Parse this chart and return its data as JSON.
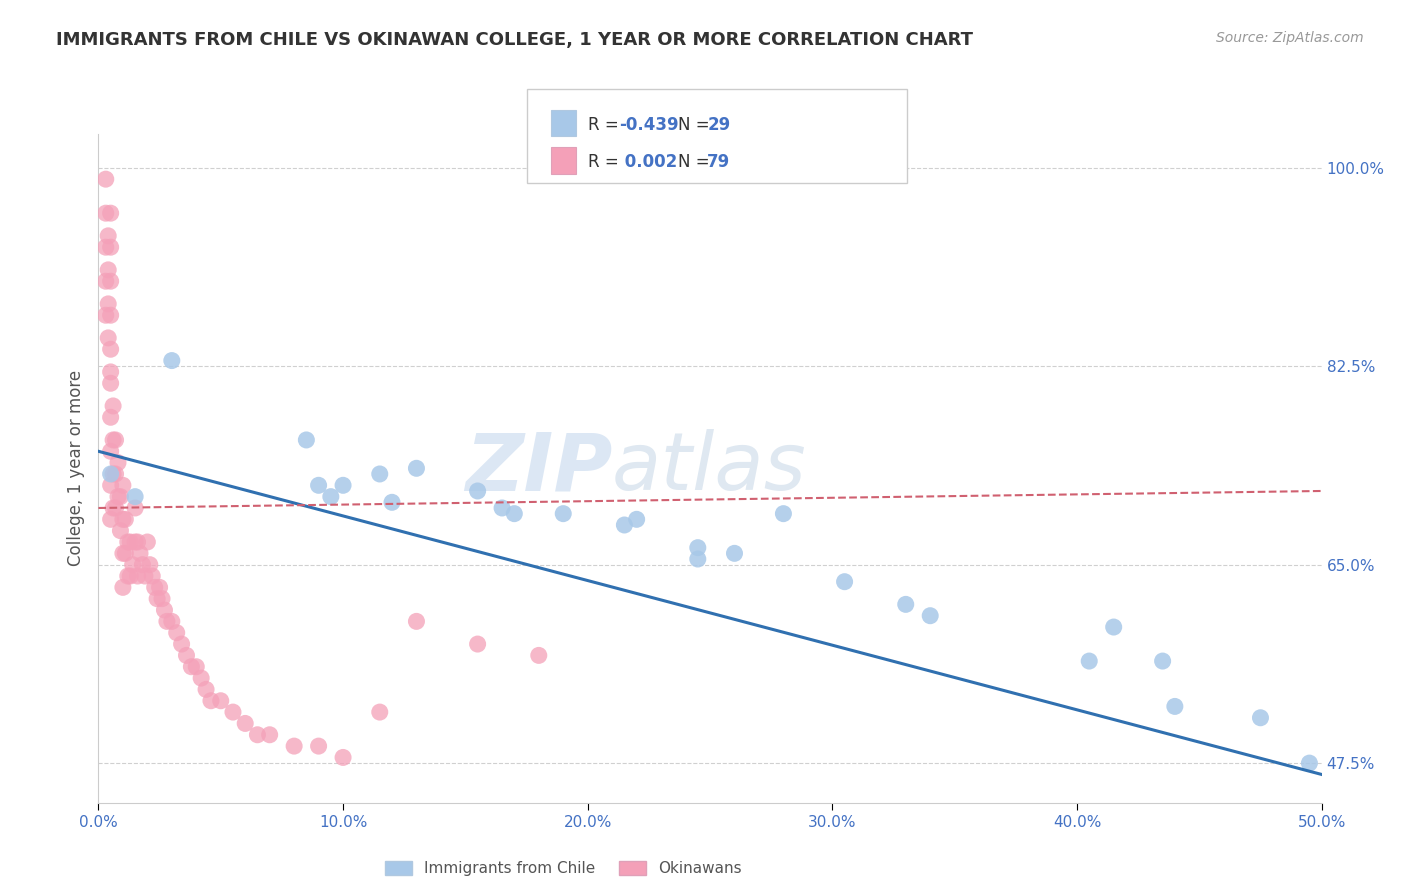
{
  "title": "IMMIGRANTS FROM CHILE VS OKINAWAN COLLEGE, 1 YEAR OR MORE CORRELATION CHART",
  "source": "Source: ZipAtlas.com",
  "ylabel": "College, 1 year or more",
  "xlim": [
    0.0,
    0.5
  ],
  "ylim": [
    0.44,
    1.03
  ],
  "xticks": [
    0.0,
    0.1,
    0.2,
    0.3,
    0.4,
    0.5
  ],
  "xticklabels": [
    "0.0%",
    "10.0%",
    "20.0%",
    "30.0%",
    "40.0%",
    "50.0%"
  ],
  "yticks_right": [
    0.475,
    0.65,
    0.825,
    1.0
  ],
  "yticklabels_right": [
    "47.5%",
    "65.0%",
    "82.5%",
    "100.0%"
  ],
  "legend_label1": "Immigrants from Chile",
  "legend_label2": "Okinawans",
  "blue_color": "#a8c8e8",
  "pink_color": "#f4a0b8",
  "blue_line_color": "#3070b0",
  "pink_line_color": "#d06070",
  "watermark_zip": "ZIP",
  "watermark_atlas": "atlas",
  "blue_scatter_x": [
    0.005,
    0.015,
    0.03,
    0.085,
    0.09,
    0.095,
    0.1,
    0.115,
    0.12,
    0.13,
    0.155,
    0.165,
    0.17,
    0.19,
    0.215,
    0.22,
    0.245,
    0.245,
    0.26,
    0.28,
    0.305,
    0.33,
    0.34,
    0.405,
    0.415,
    0.435,
    0.44,
    0.475,
    0.495
  ],
  "blue_scatter_y": [
    0.73,
    0.71,
    0.83,
    0.76,
    0.72,
    0.71,
    0.72,
    0.73,
    0.705,
    0.735,
    0.715,
    0.7,
    0.695,
    0.695,
    0.685,
    0.69,
    0.665,
    0.655,
    0.66,
    0.695,
    0.635,
    0.615,
    0.605,
    0.565,
    0.595,
    0.565,
    0.525,
    0.515,
    0.475
  ],
  "pink_scatter_x": [
    0.003,
    0.003,
    0.003,
    0.003,
    0.003,
    0.004,
    0.004,
    0.004,
    0.004,
    0.005,
    0.005,
    0.005,
    0.005,
    0.005,
    0.005,
    0.005,
    0.005,
    0.005,
    0.005,
    0.005,
    0.006,
    0.006,
    0.006,
    0.006,
    0.007,
    0.007,
    0.007,
    0.008,
    0.008,
    0.009,
    0.009,
    0.01,
    0.01,
    0.01,
    0.01,
    0.011,
    0.011,
    0.012,
    0.012,
    0.013,
    0.013,
    0.014,
    0.015,
    0.015,
    0.016,
    0.016,
    0.017,
    0.018,
    0.019,
    0.02,
    0.021,
    0.022,
    0.023,
    0.024,
    0.025,
    0.026,
    0.027,
    0.028,
    0.03,
    0.032,
    0.034,
    0.036,
    0.038,
    0.04,
    0.042,
    0.044,
    0.046,
    0.05,
    0.055,
    0.06,
    0.065,
    0.07,
    0.08,
    0.09,
    0.1,
    0.115,
    0.13,
    0.155,
    0.18
  ],
  "pink_scatter_y": [
    0.99,
    0.96,
    0.93,
    0.9,
    0.87,
    0.94,
    0.91,
    0.88,
    0.85,
    0.96,
    0.93,
    0.9,
    0.87,
    0.84,
    0.81,
    0.78,
    0.75,
    0.72,
    0.69,
    0.82,
    0.79,
    0.76,
    0.73,
    0.7,
    0.76,
    0.73,
    0.7,
    0.74,
    0.71,
    0.71,
    0.68,
    0.72,
    0.69,
    0.66,
    0.63,
    0.69,
    0.66,
    0.67,
    0.64,
    0.67,
    0.64,
    0.65,
    0.7,
    0.67,
    0.67,
    0.64,
    0.66,
    0.65,
    0.64,
    0.67,
    0.65,
    0.64,
    0.63,
    0.62,
    0.63,
    0.62,
    0.61,
    0.6,
    0.6,
    0.59,
    0.58,
    0.57,
    0.56,
    0.56,
    0.55,
    0.54,
    0.53,
    0.53,
    0.52,
    0.51,
    0.5,
    0.5,
    0.49,
    0.49,
    0.48,
    0.52,
    0.6,
    0.58,
    0.57
  ],
  "blue_trend_x": [
    0.0,
    0.5
  ],
  "blue_trend_y": [
    0.75,
    0.465
  ],
  "pink_trend_x": [
    0.0,
    0.5
  ],
  "pink_trend_y": [
    0.7,
    0.715
  ],
  "grid_color": "#d0d0d0",
  "background_color": "#ffffff",
  "title_color": "#333333",
  "source_color": "#999999",
  "axis_label_color": "#555555",
  "tick_label_color": "#4472c4",
  "right_tick_color": "#4472c4"
}
